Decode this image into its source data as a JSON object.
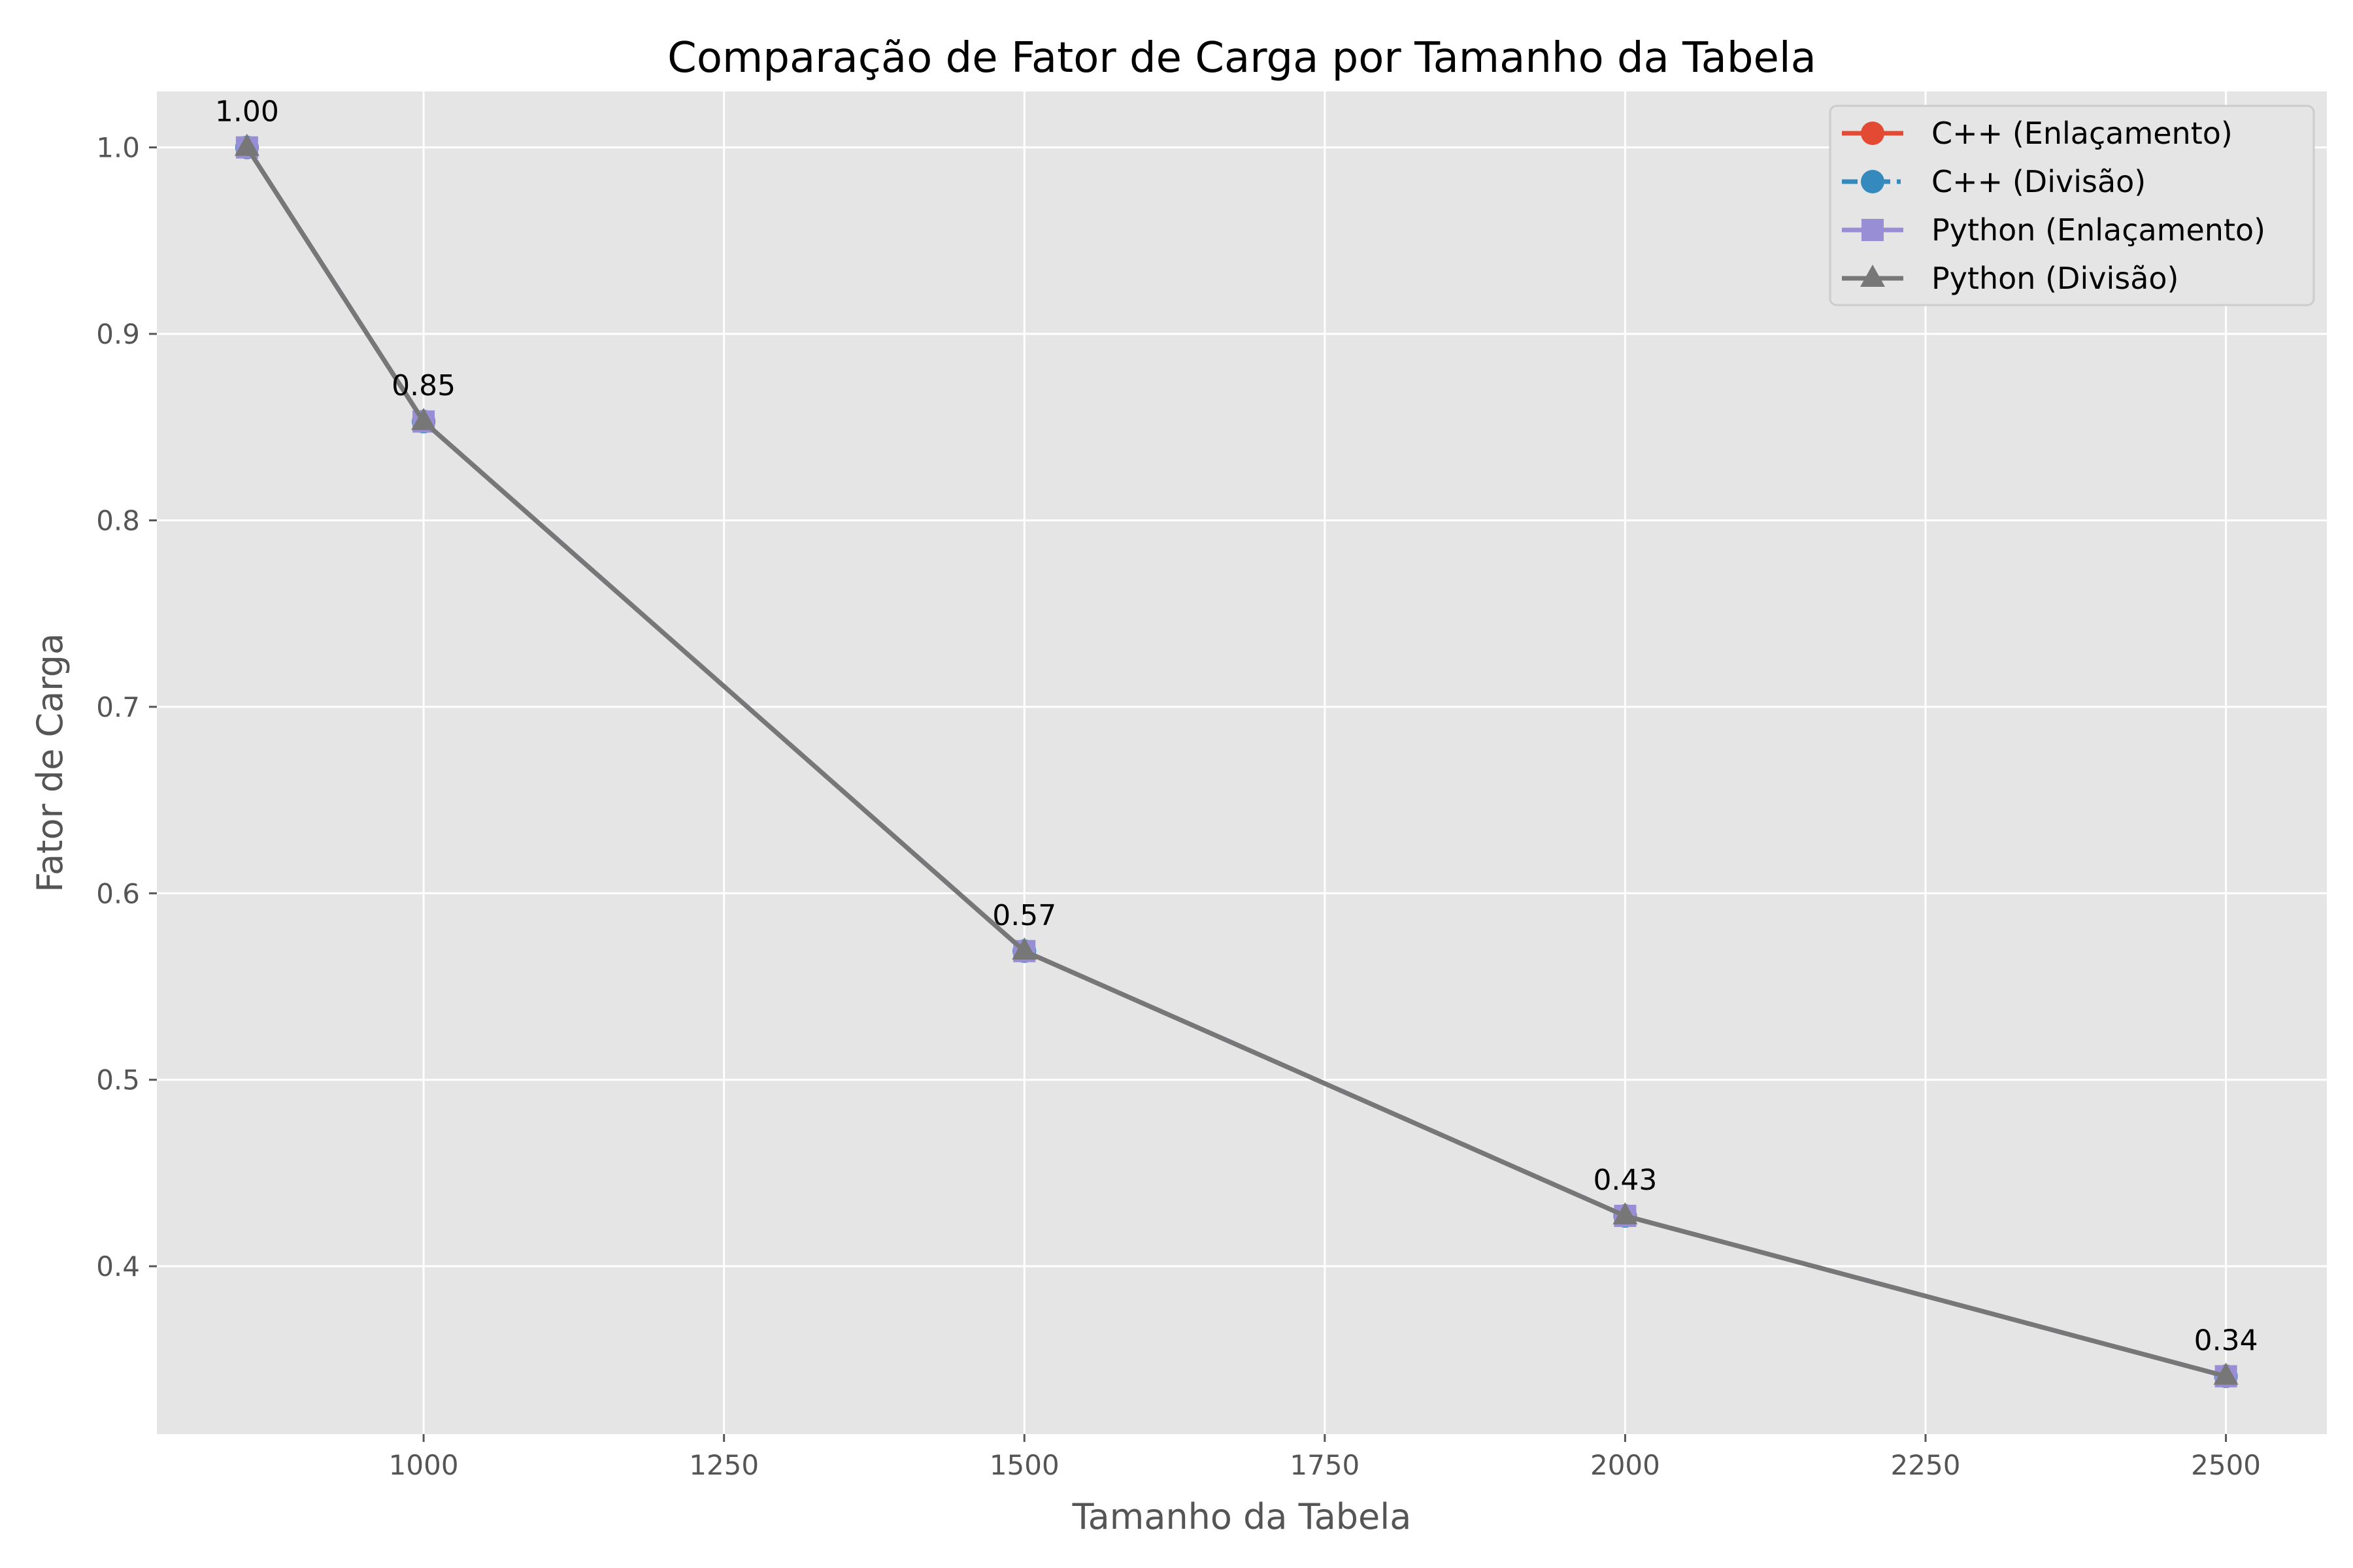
{
  "chart_data": {
    "type": "line",
    "title": "Comparação de Fator de Carga por Tamanho da Tabela",
    "xlabel": "Tamanho da Tabela",
    "ylabel": "Fator de Carga",
    "x": [
      853,
      1000,
      1500,
      2000,
      2500
    ],
    "xlim": [
      778,
      2584
    ],
    "ylim": [
      0.31,
      1.03
    ],
    "xticks": [
      1000,
      1250,
      1500,
      1750,
      2000,
      2250,
      2500
    ],
    "yticks": [
      0.4,
      0.5,
      0.6,
      0.7,
      0.8,
      0.9,
      1.0
    ],
    "grid": true,
    "legend_position": "top-right",
    "data_labels": [
      "1.00",
      "0.85",
      "0.57",
      "0.43",
      "0.34"
    ],
    "series": [
      {
        "name": "C++ (Enlaçamento)",
        "values": [
          1.0,
          0.853,
          0.569,
          0.427,
          0.341
        ],
        "color": "#E24A33",
        "marker": "circle",
        "dash": "solid"
      },
      {
        "name": "C++ (Divisão)",
        "values": [
          1.0,
          0.853,
          0.569,
          0.427,
          0.341
        ],
        "color": "#348ABD",
        "marker": "circle",
        "dash": "dashdot"
      },
      {
        "name": "Python (Enlaçamento)",
        "values": [
          1.0,
          0.853,
          0.569,
          0.427,
          0.341
        ],
        "color": "#988ED5",
        "marker": "square",
        "dash": "solid"
      },
      {
        "name": "Python (Divisão)",
        "values": [
          1.0,
          0.853,
          0.569,
          0.427,
          0.341
        ],
        "color": "#777777",
        "marker": "triangle",
        "dash": "solid"
      }
    ],
    "plot_background": "#E5E5E5",
    "grid_color": "#FFFFFF"
  }
}
